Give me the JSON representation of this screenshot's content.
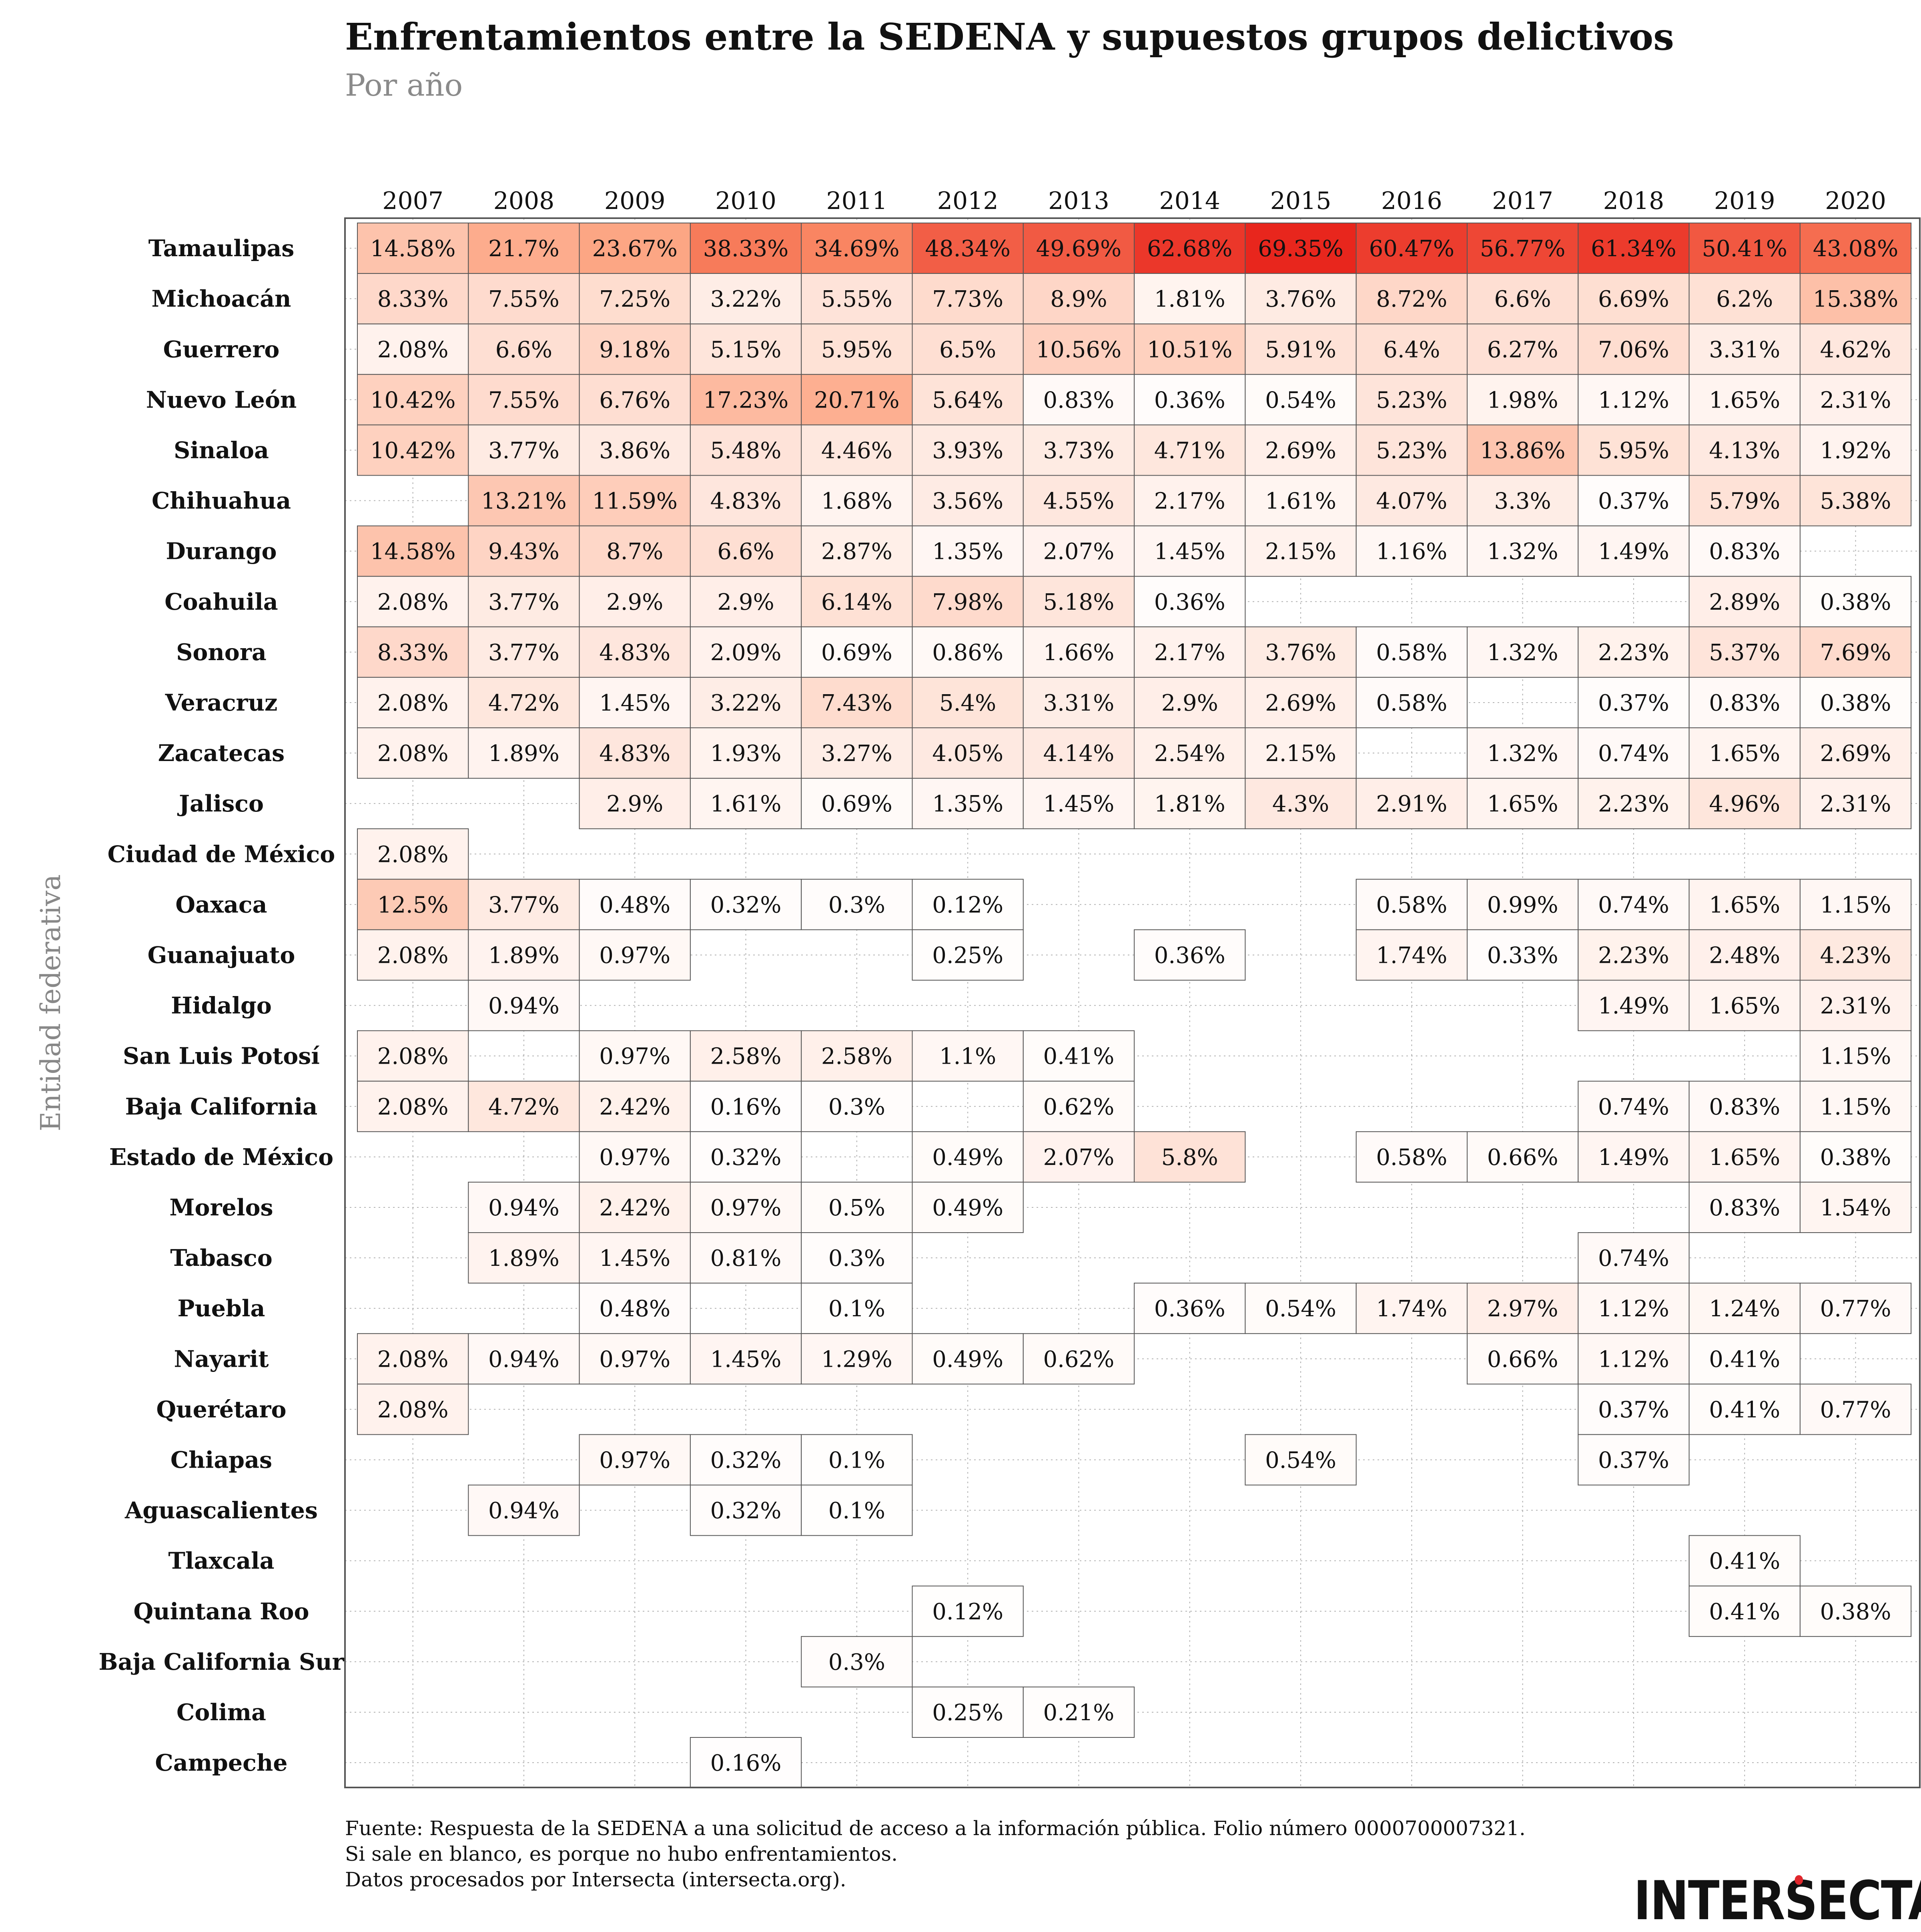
{
  "title": "Enfrentamientos entre la SEDENA y supuestos grupos delictivos",
  "subtitle": "Por año",
  "source_lines": [
    "Fuente: Respuesta de la SEDENA a una solicitud de acceso a la información pública. Folio número 0000700007321.",
    "Si sale en blanco, es porque no hubo enfrentamientos.",
    "Datos procesados por Intersecta (intersecta.org)."
  ],
  "logo_text": "INTERSECTA",
  "colors": {
    "max": "#e8261d",
    "min": "#ffffff",
    "grid": "#aaaaaa",
    "border": "#555555"
  },
  "chart_data": {
    "type": "heatmap",
    "ylabel": "Entidad federativa",
    "x": [
      "2007",
      "2008",
      "2009",
      "2010",
      "2011",
      "2012",
      "2013",
      "2014",
      "2015",
      "2016",
      "2017",
      "2018",
      "2019",
      "2020"
    ],
    "y": [
      "Tamaulipas",
      "Michoacán",
      "Guerrero",
      "Nuevo León",
      "Sinaloa",
      "Chihuahua",
      "Durango",
      "Coahuila",
      "Sonora",
      "Veracruz",
      "Zacatecas",
      "Jalisco",
      "Ciudad de México",
      "Oaxaca",
      "Guanajuato",
      "Hidalgo",
      "San Luis Potosí",
      "Baja California",
      "Estado de México",
      "Morelos",
      "Tabasco",
      "Puebla",
      "Nayarit",
      "Querétaro",
      "Chiapas",
      "Aguascalientes",
      "Tlaxcala",
      "Quintana Roo",
      "Baja California Sur",
      "Colima",
      "Campeche"
    ],
    "values": [
      [
        14.58,
        21.7,
        23.67,
        38.33,
        34.69,
        48.34,
        49.69,
        62.68,
        69.35,
        60.47,
        56.77,
        61.34,
        50.41,
        43.08
      ],
      [
        8.33,
        7.55,
        7.25,
        3.22,
        5.55,
        7.73,
        8.9,
        1.81,
        3.76,
        8.72,
        6.6,
        6.69,
        6.2,
        15.38
      ],
      [
        2.08,
        6.6,
        9.18,
        5.15,
        5.95,
        6.5,
        10.56,
        10.51,
        5.91,
        6.4,
        6.27,
        7.06,
        3.31,
        4.62
      ],
      [
        10.42,
        7.55,
        6.76,
        17.23,
        20.71,
        5.64,
        0.83,
        0.36,
        0.54,
        5.23,
        1.98,
        1.12,
        1.65,
        2.31
      ],
      [
        10.42,
        3.77,
        3.86,
        5.48,
        4.46,
        3.93,
        3.73,
        4.71,
        2.69,
        5.23,
        13.86,
        5.95,
        4.13,
        1.92
      ],
      [
        null,
        13.21,
        11.59,
        4.83,
        1.68,
        3.56,
        4.55,
        2.17,
        1.61,
        4.07,
        3.3,
        0.37,
        5.79,
        5.38
      ],
      [
        14.58,
        9.43,
        8.7,
        6.6,
        2.87,
        1.35,
        2.07,
        1.45,
        2.15,
        1.16,
        1.32,
        1.49,
        0.83,
        null
      ],
      [
        2.08,
        3.77,
        2.9,
        2.9,
        6.14,
        7.98,
        5.18,
        0.36,
        null,
        null,
        null,
        null,
        2.89,
        0.38
      ],
      [
        8.33,
        3.77,
        4.83,
        2.09,
        0.69,
        0.86,
        1.66,
        2.17,
        3.76,
        0.58,
        1.32,
        2.23,
        5.37,
        7.69
      ],
      [
        2.08,
        4.72,
        1.45,
        3.22,
        7.43,
        5.4,
        3.31,
        2.9,
        2.69,
        0.58,
        null,
        0.37,
        0.83,
        0.38
      ],
      [
        2.08,
        1.89,
        4.83,
        1.93,
        3.27,
        4.05,
        4.14,
        2.54,
        2.15,
        null,
        1.32,
        0.74,
        1.65,
        2.69
      ],
      [
        null,
        null,
        2.9,
        1.61,
        0.69,
        1.35,
        1.45,
        1.81,
        4.3,
        2.91,
        1.65,
        2.23,
        4.96,
        2.31
      ],
      [
        2.08,
        null,
        null,
        null,
        null,
        null,
        null,
        null,
        null,
        null,
        null,
        null,
        null,
        null
      ],
      [
        12.5,
        3.77,
        0.48,
        0.32,
        0.3,
        0.12,
        null,
        null,
        null,
        0.58,
        0.99,
        0.74,
        1.65,
        1.15
      ],
      [
        2.08,
        1.89,
        0.97,
        null,
        null,
        0.25,
        null,
        0.36,
        null,
        1.74,
        0.33,
        2.23,
        2.48,
        4.23
      ],
      [
        null,
        0.94,
        null,
        null,
        null,
        null,
        null,
        null,
        null,
        null,
        null,
        1.49,
        1.65,
        2.31
      ],
      [
        2.08,
        null,
        0.97,
        2.58,
        2.58,
        1.1,
        0.41,
        null,
        null,
        null,
        null,
        null,
        null,
        1.15
      ],
      [
        2.08,
        4.72,
        2.42,
        0.16,
        0.3,
        null,
        0.62,
        null,
        null,
        null,
        null,
        0.74,
        0.83,
        1.15
      ],
      [
        null,
        null,
        0.97,
        0.32,
        null,
        0.49,
        2.07,
        5.8,
        null,
        0.58,
        0.66,
        1.49,
        1.65,
        0.38
      ],
      [
        null,
        0.94,
        2.42,
        0.97,
        0.5,
        0.49,
        null,
        null,
        null,
        null,
        null,
        null,
        0.83,
        1.54
      ],
      [
        null,
        1.89,
        1.45,
        0.81,
        0.3,
        null,
        null,
        null,
        null,
        null,
        null,
        0.74,
        null,
        null
      ],
      [
        null,
        null,
        0.48,
        null,
        0.1,
        null,
        null,
        0.36,
        0.54,
        1.74,
        2.97,
        1.12,
        1.24,
        0.77
      ],
      [
        2.08,
        0.94,
        0.97,
        1.45,
        1.29,
        0.49,
        0.62,
        null,
        null,
        null,
        0.66,
        1.12,
        0.41,
        null
      ],
      [
        2.08,
        null,
        null,
        null,
        null,
        null,
        null,
        null,
        null,
        null,
        null,
        0.37,
        0.41,
        0.77
      ],
      [
        null,
        null,
        0.97,
        0.32,
        0.1,
        null,
        null,
        null,
        0.54,
        null,
        null,
        0.37,
        null,
        null
      ],
      [
        null,
        0.94,
        null,
        0.32,
        0.1,
        null,
        null,
        null,
        null,
        null,
        null,
        null,
        null,
        null
      ],
      [
        null,
        null,
        null,
        null,
        null,
        null,
        null,
        null,
        null,
        null,
        null,
        null,
        0.41,
        null
      ],
      [
        null,
        null,
        null,
        null,
        null,
        0.12,
        null,
        null,
        null,
        null,
        null,
        null,
        0.41,
        0.38
      ],
      [
        null,
        null,
        null,
        null,
        0.3,
        null,
        null,
        null,
        null,
        null,
        null,
        null,
        null,
        null
      ],
      [
        null,
        null,
        null,
        null,
        null,
        0.25,
        0.21,
        null,
        null,
        null,
        null,
        null,
        null,
        null
      ],
      [
        null,
        null,
        null,
        0.16,
        null,
        null,
        null,
        null,
        null,
        null,
        null,
        null,
        null,
        null
      ]
    ],
    "value_suffix": "%",
    "color_scale": [
      0,
      69.35
    ],
    "grid": true
  }
}
